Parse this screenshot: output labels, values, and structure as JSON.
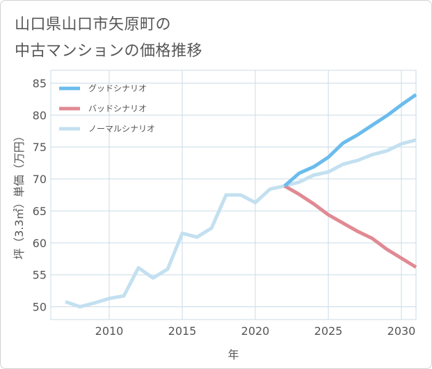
{
  "title": {
    "line1": "山口県山口市矢原町の",
    "line2": "中古マンションの価格推移"
  },
  "colors": {
    "good": "#6bbcec",
    "bad": "#e08a93",
    "normal": "#c3e0f0",
    "grid": "#c9dbe6",
    "text": "#555555"
  },
  "chart_data": {
    "type": "line",
    "title": "山口県山口市矢原町の中古マンションの価格推移",
    "xlabel": "年",
    "ylabel": "坪（3.3㎡）単価（万円）",
    "xlim": [
      2006,
      2031
    ],
    "ylim": [
      48,
      87
    ],
    "xticks": [
      2010,
      2015,
      2020,
      2025,
      2030
    ],
    "yticks": [
      50,
      55,
      60,
      65,
      70,
      75,
      80,
      85
    ],
    "legend_position": "top-left",
    "series": [
      {
        "key": "good",
        "name": "グッドシナリオ",
        "x": [
          2022,
          2023,
          2024,
          2025,
          2026,
          2027,
          2028,
          2029,
          2030,
          2031
        ],
        "values": [
          68.9,
          70.9,
          71.9,
          73.4,
          75.6,
          76.9,
          78.4,
          79.9,
          81.6,
          83.2
        ]
      },
      {
        "key": "bad",
        "name": "バッドシナリオ",
        "x": [
          2022,
          2023,
          2024,
          2025,
          2026,
          2027,
          2028,
          2029,
          2030,
          2031
        ],
        "values": [
          68.9,
          67.6,
          66.1,
          64.4,
          63.1,
          61.8,
          60.7,
          59.0,
          57.6,
          56.2
        ]
      },
      {
        "key": "normal",
        "name": "ノーマルシナリオ",
        "x": [
          2007,
          2008,
          2009,
          2010,
          2011,
          2012,
          2013,
          2014,
          2015,
          2016,
          2017,
          2018,
          2019,
          2020,
          2021,
          2022,
          2023,
          2024,
          2025,
          2026,
          2027,
          2028,
          2029,
          2030,
          2031
        ],
        "values": [
          50.8,
          50.0,
          50.6,
          51.3,
          51.7,
          56.1,
          54.5,
          55.9,
          61.5,
          60.9,
          62.3,
          67.5,
          67.5,
          66.3,
          68.4,
          68.9,
          69.5,
          70.6,
          71.1,
          72.3,
          72.9,
          73.8,
          74.4,
          75.5,
          76.1
        ]
      }
    ]
  }
}
